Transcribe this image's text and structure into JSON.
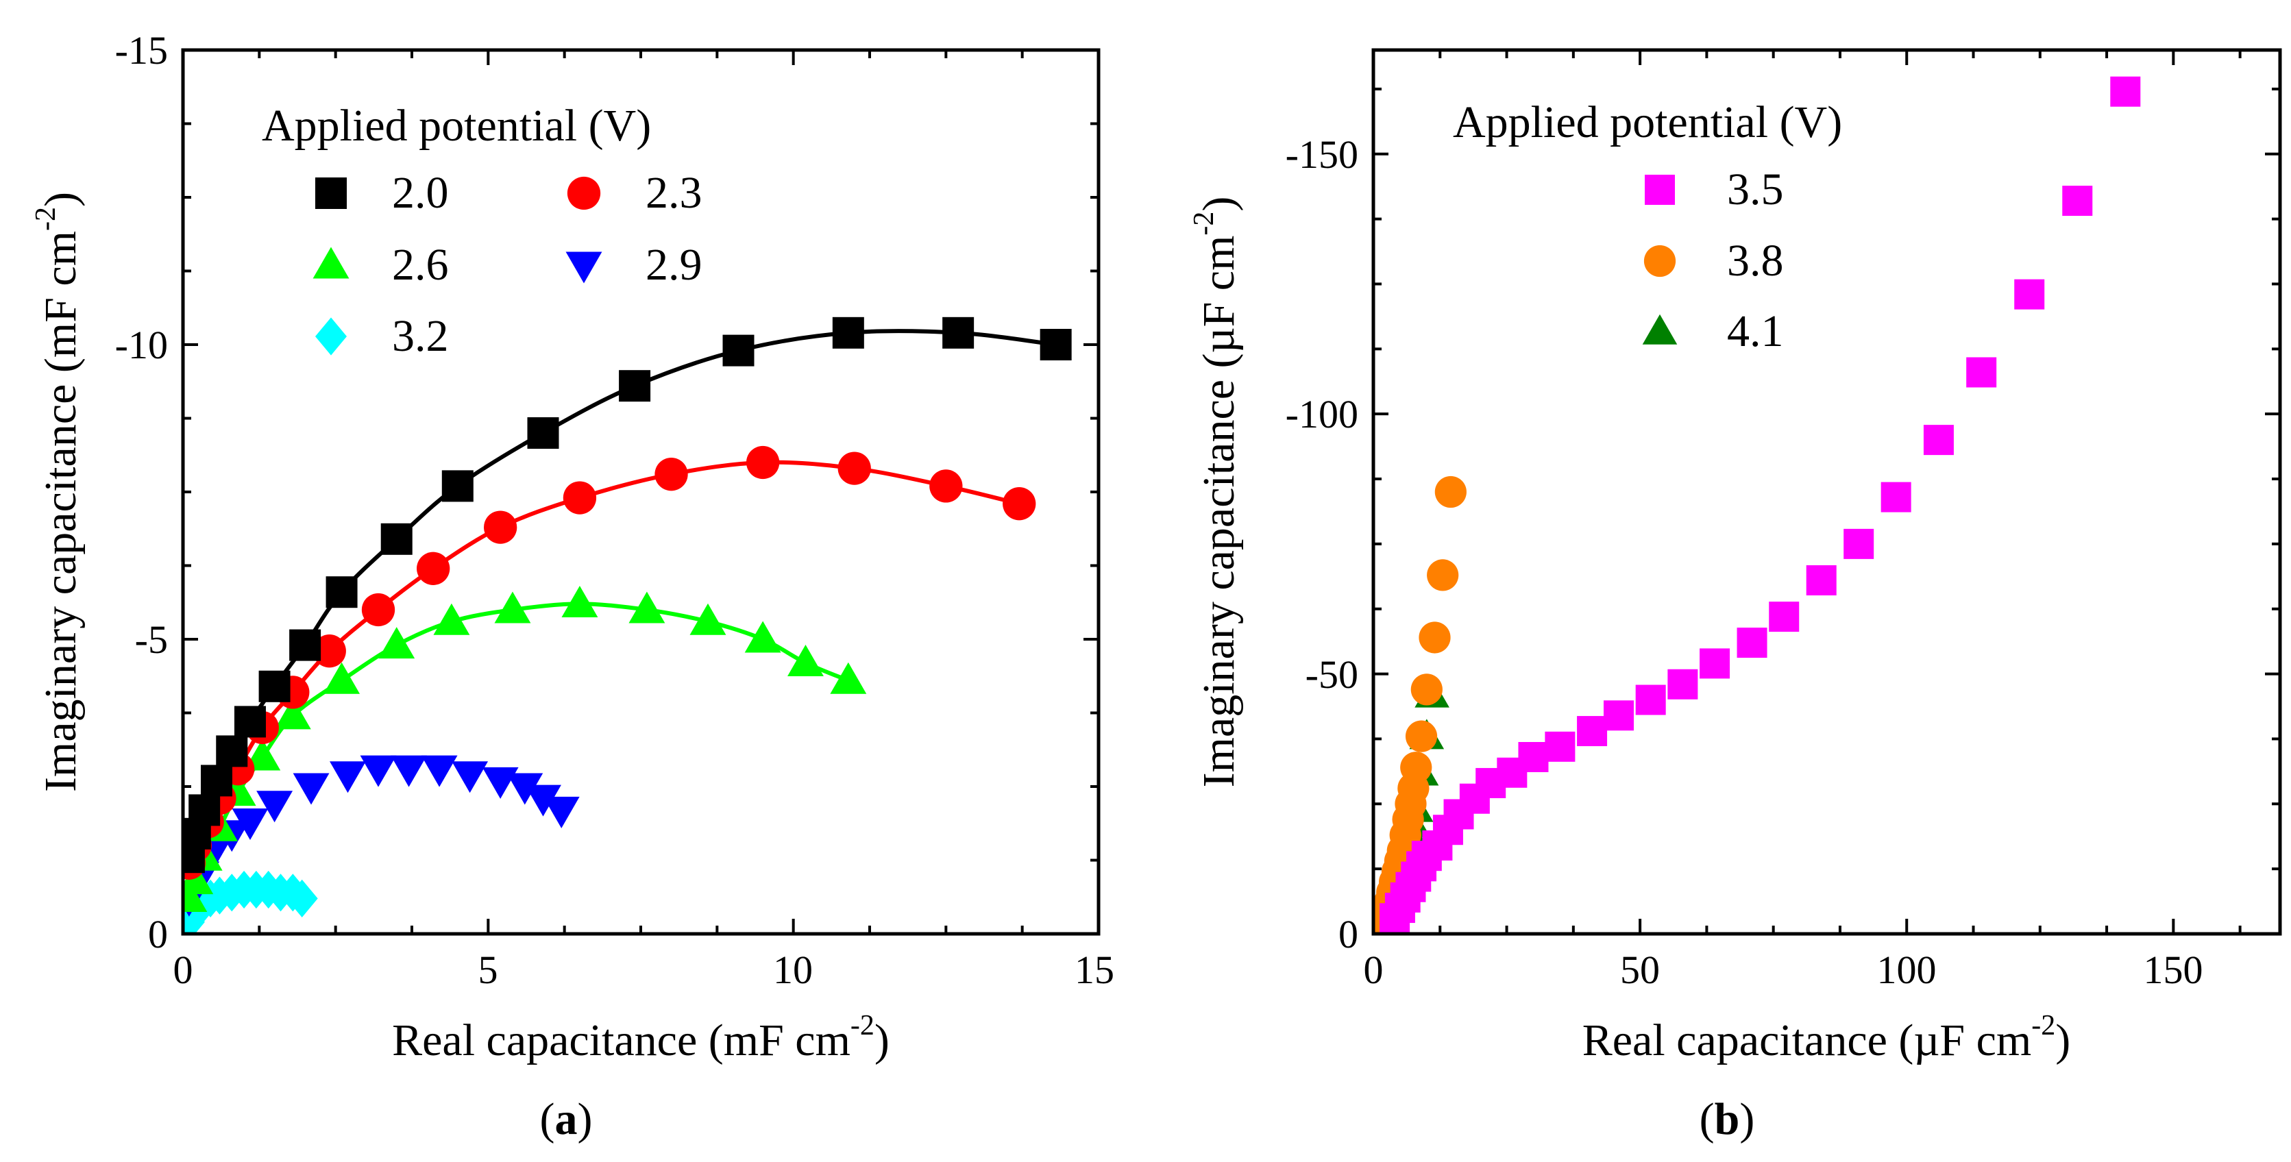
{
  "chart_data": [
    {
      "panel": "a",
      "type": "scatter",
      "panel_label": {
        "open": "(",
        "letter": "a",
        "close": ")"
      },
      "xlabel": {
        "main": "Real capacitance (mF cm",
        "sup": "-2",
        "end": ")"
      },
      "ylabel": {
        "main": "Imaginary capacitance (mF cm",
        "sup": "-2",
        "end": ")"
      },
      "xlim": [
        0,
        15
      ],
      "ylim": [
        0,
        -15
      ],
      "xticks": [
        0,
        5,
        10,
        15
      ],
      "yticks": [
        0,
        -5,
        -10,
        -15
      ],
      "xtick_labels": [
        "0",
        "5",
        "10",
        "15"
      ],
      "ytick_labels": [
        "0",
        "-5",
        "-10",
        "-15"
      ],
      "legend": {
        "title": "Applied potential (V)",
        "placement": "top-left",
        "columns": 2
      },
      "series": [
        {
          "name": "2.0",
          "marker": "square",
          "color": "#000000",
          "fit_line": true,
          "x": [
            0.1,
            0.2,
            0.35,
            0.55,
            0.8,
            1.1,
            1.5,
            2.0,
            2.6,
            3.5,
            4.5,
            5.9,
            7.4,
            9.1,
            10.9,
            12.7,
            14.3
          ],
          "y": [
            -1.3,
            -1.7,
            -2.1,
            -2.6,
            -3.1,
            -3.6,
            -4.2,
            -4.9,
            -5.8,
            -6.7,
            -7.6,
            -8.5,
            -9.3,
            -9.9,
            -10.2,
            -10.2,
            -10.0
          ]
        },
        {
          "name": "2.3",
          "marker": "circle",
          "color": "#ff0000",
          "fit_line": true,
          "x": [
            0.1,
            0.2,
            0.4,
            0.6,
            0.9,
            1.3,
            1.8,
            2.4,
            3.2,
            4.1,
            5.2,
            6.5,
            8.0,
            9.5,
            11.0,
            12.5,
            13.7
          ],
          "y": [
            -1.2,
            -1.5,
            -1.9,
            -2.3,
            -2.8,
            -3.5,
            -4.1,
            -4.8,
            -5.5,
            -6.2,
            -6.9,
            -7.4,
            -7.8,
            -8.0,
            -7.9,
            -7.6,
            -7.3
          ]
        },
        {
          "name": "2.6",
          "marker": "triangle-up",
          "color": "#00ff00",
          "fit_line": true,
          "x": [
            0.1,
            0.2,
            0.35,
            0.6,
            0.9,
            1.3,
            1.8,
            2.6,
            3.5,
            4.4,
            5.4,
            6.5,
            7.6,
            8.6,
            9.5,
            10.2,
            10.9
          ],
          "y": [
            -0.6,
            -0.9,
            -1.3,
            -1.8,
            -2.4,
            -3.0,
            -3.7,
            -4.3,
            -4.9,
            -5.3,
            -5.5,
            -5.6,
            -5.5,
            -5.3,
            -5.0,
            -4.6,
            -4.3
          ]
        },
        {
          "name": "2.9",
          "marker": "triangle-down",
          "color": "#0000ff",
          "fit_line": false,
          "x": [
            0.1,
            0.3,
            0.5,
            0.8,
            1.1,
            1.5,
            2.1,
            2.7,
            3.2,
            3.7,
            4.2,
            4.7,
            5.2,
            5.6,
            5.9,
            6.2
          ],
          "y": [
            -0.6,
            -1.0,
            -1.4,
            -1.7,
            -1.9,
            -2.2,
            -2.5,
            -2.7,
            -2.8,
            -2.8,
            -2.8,
            -2.7,
            -2.6,
            -2.5,
            -2.3,
            -2.1
          ]
        },
        {
          "name": "3.2",
          "marker": "diamond",
          "color": "#00ffff",
          "fit_line": false,
          "x": [
            0.1,
            0.2,
            0.3,
            0.45,
            0.6,
            0.8,
            1.0,
            1.2,
            1.4,
            1.6,
            1.8,
            1.95
          ],
          "y": [
            -0.2,
            -0.35,
            -0.5,
            -0.6,
            -0.65,
            -0.7,
            -0.75,
            -0.75,
            -0.75,
            -0.7,
            -0.7,
            -0.6
          ]
        }
      ]
    },
    {
      "panel": "b",
      "type": "scatter",
      "panel_label": {
        "open": "(",
        "letter": "b",
        "close": ")"
      },
      "xlabel": {
        "main": "Real capacitance (µF cm",
        "sup": "-2",
        "end": ")"
      },
      "ylabel": {
        "main": "Imaginary capacitance (µF cm",
        "sup": "-2",
        "end": ")"
      },
      "xlim": [
        0,
        170
      ],
      "ylim": [
        0,
        -170
      ],
      "xticks": [
        0,
        50,
        100,
        150
      ],
      "yticks": [
        0,
        -50,
        -100,
        -150
      ],
      "xtick_labels": [
        "0",
        "50",
        "100",
        "150"
      ],
      "ytick_labels": [
        "0",
        "-50",
        "-100",
        "-150"
      ],
      "legend": {
        "title": "Applied potential (V)",
        "placement": "top-left",
        "columns": 1
      },
      "series": [
        {
          "name": "3.5",
          "marker": "square",
          "color": "#ff00ff",
          "fit_line": false,
          "x": [
            4,
            5,
            6,
            7,
            8,
            9,
            10,
            12,
            14,
            16,
            19,
            22,
            26,
            30,
            35,
            41,
            46,
            52,
            58,
            64,
            71,
            77,
            84,
            91,
            98,
            106,
            114,
            123,
            132,
            141
          ],
          "y": [
            -3,
            -5,
            -7,
            -9,
            -11,
            -13,
            -15,
            -17,
            -20,
            -23,
            -26,
            -29,
            -31,
            -34,
            -36,
            -39,
            -42,
            -45,
            -48,
            -52,
            -56,
            -61,
            -68,
            -75,
            -84,
            -95,
            -108,
            -123,
            -141,
            -162
          ]
        },
        {
          "name": "3.8",
          "marker": "circle",
          "color": "#ff8000",
          "fit_line": false,
          "x": [
            2,
            2.5,
            3,
            3.5,
            4,
            4.5,
            5,
            5.5,
            6,
            6.5,
            7,
            7.5,
            8,
            9,
            10,
            11.5,
            13,
            14.5
          ],
          "y": [
            -2,
            -4,
            -6,
            -8,
            -10,
            -12,
            -14,
            -16,
            -19,
            -22,
            -25,
            -28,
            -32,
            -38,
            -47,
            -57,
            -69,
            -85
          ]
        },
        {
          "name": "4.1",
          "marker": "triangle-up",
          "color": "#008000",
          "fit_line": false,
          "x": [
            2.5,
            3,
            3.5,
            4,
            4.5,
            5,
            5.5,
            6,
            6.5,
            7,
            7.5,
            8,
            9,
            10,
            11
          ],
          "y": [
            -1,
            -3,
            -5,
            -7,
            -9,
            -11,
            -13,
            -15,
            -17,
            -19,
            -21,
            -24,
            -31,
            -38,
            -46
          ]
        }
      ]
    }
  ]
}
